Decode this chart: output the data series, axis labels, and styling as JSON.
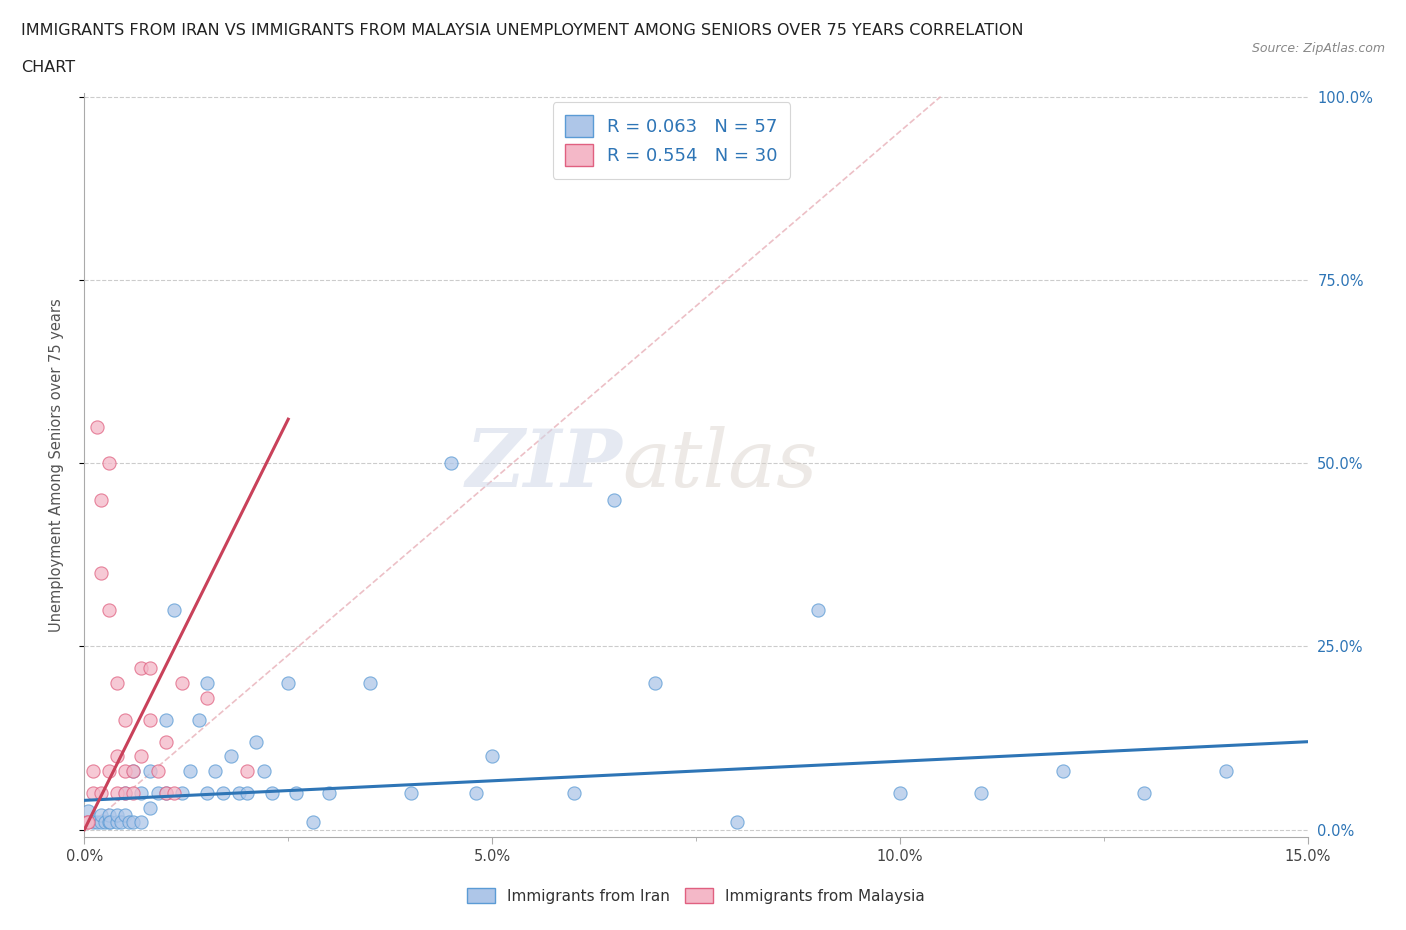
{
  "title_line1": "IMMIGRANTS FROM IRAN VS IMMIGRANTS FROM MALAYSIA UNEMPLOYMENT AMONG SENIORS OVER 75 YEARS CORRELATION",
  "title_line2": "CHART",
  "source": "Source: ZipAtlas.com",
  "xlabel_iran": "Immigrants from Iran",
  "xlabel_malaysia": "Immigrants from Malaysia",
  "ylabel": "Unemployment Among Seniors over 75 years",
  "watermark_zip": "ZIP",
  "watermark_atlas": "atlas",
  "xlim": [
    0.0,
    0.15
  ],
  "ylim": [
    0.0,
    1.0
  ],
  "xticks": [
    0.0,
    0.05,
    0.1,
    0.15
  ],
  "xtick_labels": [
    "0.0%",
    "5.0%",
    "10.0%",
    "15.0%"
  ],
  "yticks": [
    0.0,
    0.25,
    0.5,
    0.75,
    1.0
  ],
  "ytick_labels_right": [
    "0.0%",
    "25.0%",
    "50.0%",
    "75.0%",
    "100.0%"
  ],
  "iran_color": "#aec6e8",
  "iran_edge_color": "#5b9bd5",
  "malaysia_color": "#f4b8c8",
  "malaysia_edge_color": "#e06080",
  "iran_line_color": "#2e75b6",
  "malaysia_line_color": "#c9415a",
  "diag_line_color": "#e8b0b8",
  "R_iran": 0.063,
  "N_iran": 57,
  "R_malaysia": 0.554,
  "N_malaysia": 30,
  "legend_text_color": "#2e75b6",
  "iran_scatter_x": [
    0.0005,
    0.001,
    0.0015,
    0.002,
    0.002,
    0.0025,
    0.003,
    0.003,
    0.0032,
    0.004,
    0.004,
    0.0045,
    0.005,
    0.005,
    0.0055,
    0.006,
    0.006,
    0.007,
    0.007,
    0.008,
    0.008,
    0.009,
    0.01,
    0.01,
    0.011,
    0.012,
    0.013,
    0.014,
    0.015,
    0.015,
    0.016,
    0.017,
    0.018,
    0.019,
    0.02,
    0.021,
    0.022,
    0.023,
    0.025,
    0.026,
    0.028,
    0.03,
    0.035,
    0.04,
    0.045,
    0.048,
    0.05,
    0.06,
    0.065,
    0.07,
    0.08,
    0.09,
    0.1,
    0.11,
    0.12,
    0.13,
    0.14
  ],
  "iran_scatter_y": [
    0.025,
    0.01,
    0.01,
    0.01,
    0.02,
    0.01,
    0.01,
    0.02,
    0.01,
    0.01,
    0.02,
    0.01,
    0.02,
    0.05,
    0.01,
    0.01,
    0.08,
    0.01,
    0.05,
    0.03,
    0.08,
    0.05,
    0.05,
    0.15,
    0.3,
    0.05,
    0.08,
    0.15,
    0.05,
    0.2,
    0.08,
    0.05,
    0.1,
    0.05,
    0.05,
    0.12,
    0.08,
    0.05,
    0.2,
    0.05,
    0.01,
    0.05,
    0.2,
    0.05,
    0.5,
    0.05,
    0.1,
    0.05,
    0.45,
    0.2,
    0.01,
    0.3,
    0.05,
    0.05,
    0.08,
    0.05,
    0.08
  ],
  "malaysia_scatter_x": [
    0.0003,
    0.0005,
    0.001,
    0.001,
    0.0015,
    0.002,
    0.002,
    0.002,
    0.003,
    0.003,
    0.003,
    0.004,
    0.004,
    0.004,
    0.005,
    0.005,
    0.005,
    0.006,
    0.006,
    0.007,
    0.007,
    0.008,
    0.008,
    0.009,
    0.01,
    0.01,
    0.011,
    0.012,
    0.015,
    0.02
  ],
  "malaysia_scatter_y": [
    0.01,
    0.01,
    0.05,
    0.08,
    0.55,
    0.35,
    0.45,
    0.05,
    0.3,
    0.5,
    0.08,
    0.1,
    0.2,
    0.05,
    0.15,
    0.08,
    0.05,
    0.08,
    0.05,
    0.1,
    0.22,
    0.22,
    0.15,
    0.08,
    0.05,
    0.12,
    0.05,
    0.2,
    0.18,
    0.08
  ],
  "malaysia_trendline_x": [
    0.0,
    0.025
  ],
  "malaysia_trendline_y": [
    0.0,
    0.56
  ],
  "iran_trendline_x": [
    0.0,
    0.15
  ],
  "iran_trendline_y": [
    0.04,
    0.12
  ],
  "diag_line_x": [
    0.0,
    0.105
  ],
  "diag_line_y": [
    0.0,
    1.0
  ]
}
